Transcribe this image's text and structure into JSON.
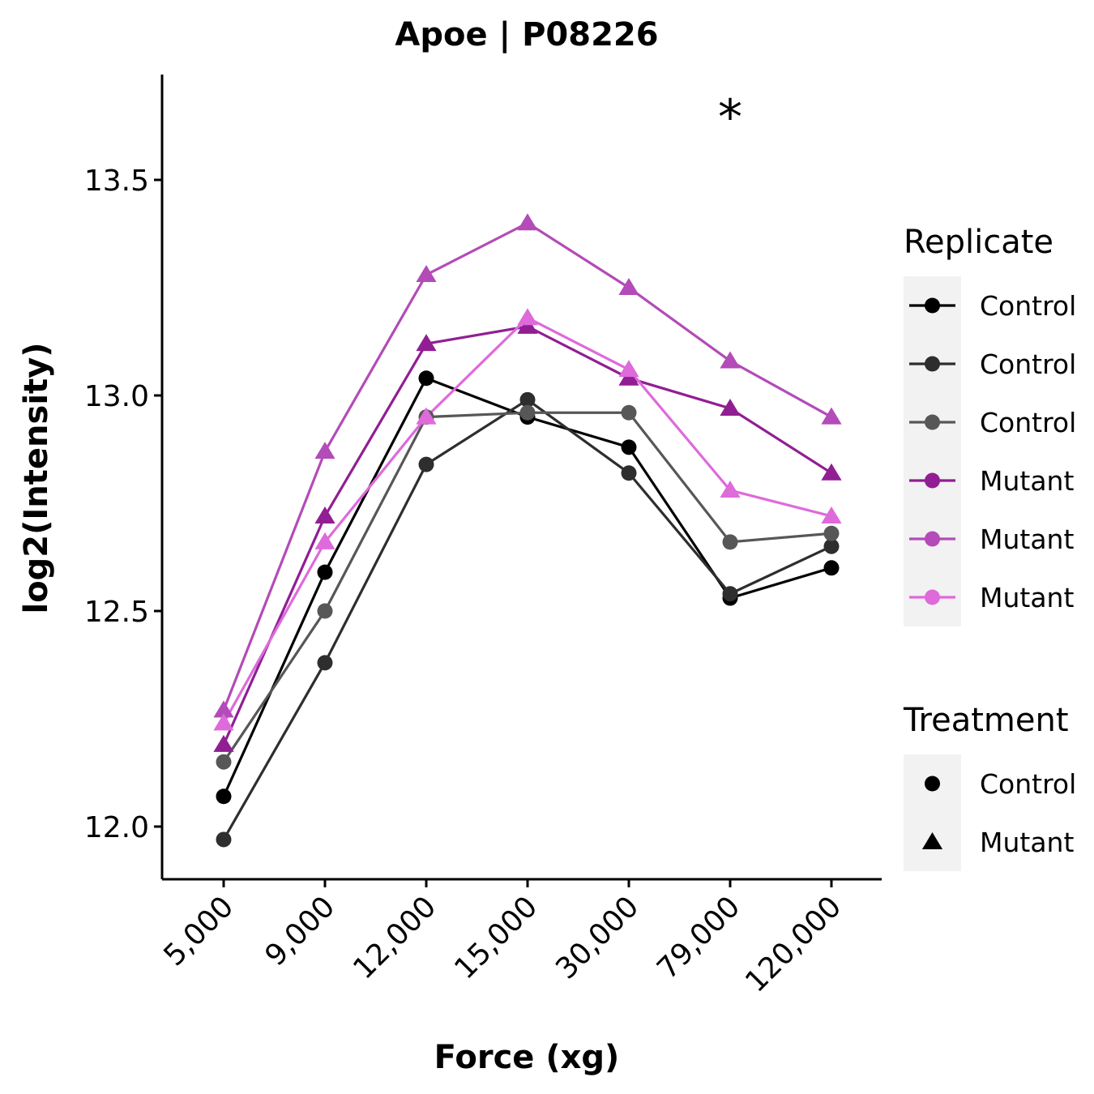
{
  "chart_data": {
    "type": "line",
    "title": "Apoe | P08226",
    "xlabel": "Force (xg)",
    "ylabel": "log2(Intensity)",
    "categories": [
      "5,000",
      "9,000",
      "12,000",
      "15,000",
      "30,000",
      "79,000",
      "120,000"
    ],
    "ylim": [
      11.88,
      13.75
    ],
    "yticks": [
      "12.0",
      "12.5",
      "13.0",
      "13.5"
    ],
    "ytick_values": [
      12.0,
      12.5,
      13.0,
      13.5
    ],
    "grid": false,
    "legend_position": "right",
    "annotations": [
      {
        "text": "*",
        "category": "79,000",
        "y": 13.69
      }
    ],
    "series": [
      {
        "name": "Control",
        "treatment": "Control",
        "color": "#000000",
        "marker": "circle",
        "values": [
          12.07,
          12.59,
          13.04,
          12.95,
          12.88,
          12.53,
          12.6
        ]
      },
      {
        "name": "Control",
        "treatment": "Control",
        "color": "#2e2e2e",
        "marker": "circle",
        "values": [
          11.97,
          12.38,
          12.84,
          12.99,
          12.82,
          12.54,
          12.65
        ]
      },
      {
        "name": "Control",
        "treatment": "Control",
        "color": "#575757",
        "marker": "circle",
        "values": [
          12.15,
          12.5,
          12.95,
          12.96,
          12.96,
          12.66,
          12.68
        ]
      },
      {
        "name": "Mutant",
        "treatment": "Mutant",
        "color": "#911e93",
        "marker": "triangle",
        "values": [
          12.19,
          12.72,
          13.12,
          13.16,
          13.04,
          12.97,
          12.82
        ]
      },
      {
        "name": "Mutant",
        "treatment": "Mutant",
        "color": "#b34bb8",
        "marker": "triangle",
        "values": [
          12.27,
          12.87,
          13.28,
          13.4,
          13.25,
          13.08,
          12.95
        ]
      },
      {
        "name": "Mutant",
        "treatment": "Mutant",
        "color": "#de6adb",
        "marker": "triangle",
        "values": [
          12.24,
          12.66,
          12.95,
          13.18,
          13.06,
          12.78,
          12.72
        ]
      }
    ],
    "legends": [
      {
        "title": "Replicate",
        "key": "line-circle",
        "entries": [
          {
            "label": "Control",
            "color": "#000000"
          },
          {
            "label": "Control",
            "color": "#2e2e2e"
          },
          {
            "label": "Control",
            "color": "#575757"
          },
          {
            "label": "Mutant",
            "color": "#911e93"
          },
          {
            "label": "Mutant",
            "color": "#b34bb8"
          },
          {
            "label": "Mutant",
            "color": "#de6adb"
          }
        ]
      },
      {
        "title": "Treatment",
        "key": "shape",
        "entries": [
          {
            "label": "Control",
            "marker": "circle",
            "color": "#000000"
          },
          {
            "label": "Mutant",
            "marker": "triangle",
            "color": "#000000"
          }
        ]
      }
    ]
  }
}
